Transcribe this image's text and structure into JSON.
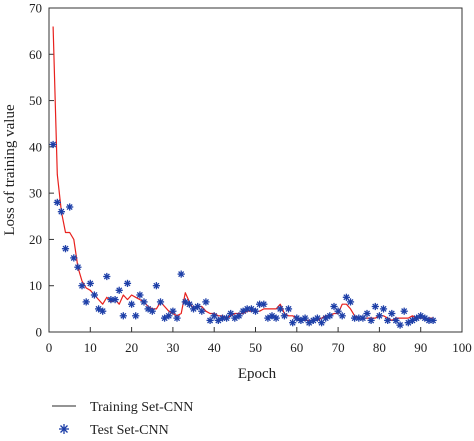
{
  "chart_data": {
    "type": "line",
    "title": "",
    "xlabel": "Epoch",
    "ylabel": "Loss of training value",
    "xlim": [
      0,
      100
    ],
    "ylim": [
      0,
      70
    ],
    "x_ticks": [
      0,
      10,
      20,
      30,
      40,
      50,
      60,
      70,
      80,
      90,
      100
    ],
    "y_ticks": [
      0,
      10,
      20,
      30,
      40,
      50,
      60,
      70
    ],
    "grid": false,
    "legend_position": "bottom-left",
    "series": [
      {
        "name": "Training Set-CNN",
        "style": "line",
        "color": "#e8211d",
        "x": [
          1,
          2,
          3,
          4,
          5,
          6,
          7,
          8,
          9,
          10,
          11,
          12,
          13,
          14,
          15,
          16,
          17,
          18,
          19,
          20,
          21,
          22,
          23,
          24,
          25,
          26,
          27,
          28,
          29,
          30,
          31,
          32,
          33,
          34,
          35,
          36,
          37,
          38,
          39,
          40,
          41,
          42,
          43,
          44,
          45,
          46,
          47,
          48,
          49,
          50,
          51,
          52,
          53,
          54,
          55,
          56,
          57,
          58,
          59,
          60,
          61,
          62,
          63,
          64,
          65,
          66,
          67,
          68,
          69,
          70,
          71,
          72,
          73,
          74,
          75,
          76,
          77,
          78,
          79,
          80,
          81,
          82,
          83,
          84,
          85,
          86,
          87,
          88,
          89,
          90,
          91,
          92,
          93
        ],
        "y": [
          66,
          34,
          26,
          21.5,
          21.5,
          20,
          14,
          11,
          9.5,
          9,
          8,
          7,
          6,
          7.5,
          6.5,
          7,
          6,
          8,
          7,
          8,
          7.5,
          7,
          6.5,
          5.5,
          5,
          5,
          6.5,
          5.5,
          4.5,
          4,
          3.5,
          4,
          8.5,
          6.5,
          5,
          5.5,
          5.5,
          4.5,
          4,
          4,
          3.5,
          3.5,
          3,
          3.5,
          4,
          4,
          4,
          4.5,
          4.5,
          4.5,
          4.5,
          5,
          5,
          5,
          5,
          6,
          4,
          3.5,
          3.5,
          3,
          2.5,
          2.5,
          2.5,
          2.5,
          2.5,
          3,
          3.5,
          3.5,
          4,
          4,
          6,
          6,
          5,
          3.5,
          3,
          3,
          3,
          3,
          3,
          3.5,
          3.5,
          3,
          2.5,
          3,
          3,
          3,
          3,
          3.5,
          3,
          3,
          3,
          3,
          3
        ]
      },
      {
        "name": "Test Set-CNN",
        "style": "marker",
        "color": "#1d3fa8",
        "x": [
          1,
          2,
          3,
          4,
          5,
          6,
          7,
          8,
          9,
          10,
          11,
          12,
          13,
          14,
          15,
          16,
          17,
          18,
          19,
          20,
          21,
          22,
          23,
          24,
          25,
          26,
          27,
          28,
          29,
          30,
          31,
          32,
          33,
          34,
          35,
          36,
          37,
          38,
          39,
          40,
          41,
          42,
          43,
          44,
          45,
          46,
          47,
          48,
          49,
          50,
          51,
          52,
          53,
          54,
          55,
          56,
          57,
          58,
          59,
          60,
          61,
          62,
          63,
          64,
          65,
          66,
          67,
          68,
          69,
          70,
          71,
          72,
          73,
          74,
          75,
          76,
          77,
          78,
          79,
          80,
          81,
          82,
          83,
          84,
          85,
          86,
          87,
          88,
          89,
          90,
          91,
          92,
          93
        ],
        "y": [
          40.5,
          28,
          26,
          18,
          27,
          16,
          14,
          10,
          6.5,
          10.5,
          8,
          5,
          4.5,
          12,
          7,
          7,
          9,
          3.5,
          10.5,
          6,
          3.5,
          8,
          6.5,
          5,
          4.5,
          10,
          6.5,
          3,
          3.5,
          4.5,
          3,
          12.5,
          6.5,
          6,
          5,
          5.5,
          4.5,
          6.5,
          2.5,
          3.5,
          2.5,
          3,
          3,
          4,
          3,
          3.5,
          4.5,
          5,
          5,
          4.5,
          6,
          6,
          3,
          3.5,
          3,
          5,
          3.5,
          5,
          2,
          3,
          2.5,
          3,
          2,
          2.5,
          3,
          2,
          3,
          3.5,
          5.5,
          4.5,
          3.5,
          7.5,
          6.5,
          3,
          3,
          3,
          4,
          2.5,
          5.5,
          3.5,
          5,
          2.5,
          4,
          2.5,
          1.5,
          4.5,
          2,
          2.5,
          3,
          3.5,
          3,
          2.5,
          2.5
        ]
      }
    ]
  }
}
